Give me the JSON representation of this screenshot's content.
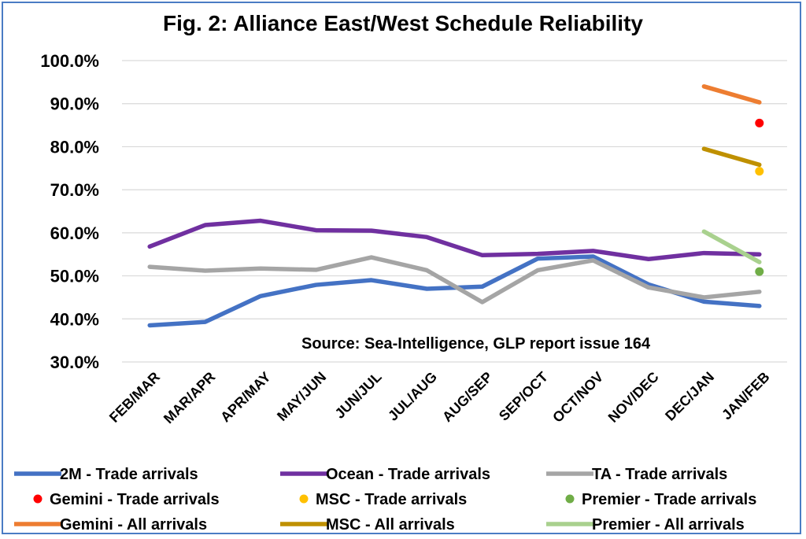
{
  "chart_data": {
    "type": "line",
    "title": "Fig. 2: Alliance East/West Schedule Reliability",
    "categories": [
      "FEB/MAR",
      "MAR/APR",
      "APR/MAY",
      "MAY/JUN",
      "JUN/JUL",
      "JUL/AUG",
      "AUG/SEP",
      "SEP/OCT",
      "OCT/NOV",
      "NOV/DEC",
      "DEC/JAN",
      "JAN/FEB"
    ],
    "y_ticks": [
      "100.0%",
      "90.0%",
      "80.0%",
      "70.0%",
      "60.0%",
      "50.0%",
      "40.0%",
      "30.0%"
    ],
    "ylim": [
      30,
      100
    ],
    "grid": true,
    "legend_position": "bottom",
    "annotation": "Source: Sea-Intelligence, GLP report issue 164",
    "series": [
      {
        "name": "2M - Trade arrivals",
        "kind": "line",
        "color": "#4472c4",
        "values": [
          38.5,
          39.3,
          45.3,
          47.9,
          49.0,
          47.0,
          47.5,
          54.0,
          54.5,
          48.0,
          44.0,
          43.0
        ]
      },
      {
        "name": "Ocean - Trade arrivals",
        "kind": "line",
        "color": "#7030a0",
        "values": [
          56.8,
          61.8,
          62.8,
          60.6,
          60.5,
          59.0,
          54.8,
          55.1,
          55.8,
          53.9,
          55.3,
          55.0
        ]
      },
      {
        "name": "TA - Trade arrivals",
        "kind": "line",
        "color": "#a5a5a5",
        "values": [
          52.1,
          51.2,
          51.7,
          51.4,
          54.3,
          51.3,
          43.9,
          51.3,
          53.6,
          47.3,
          45.0,
          46.3
        ]
      },
      {
        "name": "Gemini - Trade arrivals",
        "kind": "point",
        "color": "#ff0000",
        "values": [
          null,
          null,
          null,
          null,
          null,
          null,
          null,
          null,
          null,
          null,
          null,
          85.5
        ]
      },
      {
        "name": "MSC - Trade arrivals",
        "kind": "point",
        "color": "#ffc000",
        "values": [
          null,
          null,
          null,
          null,
          null,
          null,
          null,
          null,
          null,
          null,
          null,
          74.3
        ]
      },
      {
        "name": "Premier - Trade arrivals",
        "kind": "point",
        "color": "#70ad47",
        "values": [
          null,
          null,
          null,
          null,
          null,
          null,
          null,
          null,
          null,
          null,
          null,
          51.0
        ]
      },
      {
        "name": "Gemini - All arrivals",
        "kind": "line",
        "color": "#ed7d31",
        "values": [
          null,
          null,
          null,
          null,
          null,
          null,
          null,
          null,
          null,
          null,
          94.0,
          90.3
        ]
      },
      {
        "name": "MSC - All arrivals",
        "kind": "line",
        "color": "#bf9000",
        "values": [
          null,
          null,
          null,
          null,
          null,
          null,
          null,
          null,
          null,
          null,
          79.5,
          75.8
        ]
      },
      {
        "name": "Premier  - All arrivals",
        "kind": "line",
        "color": "#a9d18e",
        "values": [
          null,
          null,
          null,
          null,
          null,
          null,
          null,
          null,
          null,
          null,
          60.3,
          53.2
        ]
      }
    ]
  }
}
